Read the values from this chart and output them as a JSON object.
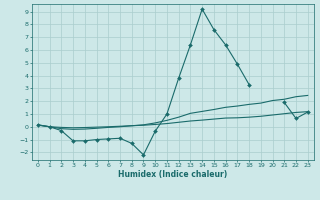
{
  "background_color": "#cde8e8",
  "grid_color": "#aacece",
  "line_color": "#1a6b6b",
  "xlabel": "Humidex (Indice chaleur)",
  "xlim": [
    -0.5,
    23.5
  ],
  "ylim": [
    -2.6,
    9.6
  ],
  "xticks": [
    0,
    1,
    2,
    3,
    4,
    5,
    6,
    7,
    8,
    9,
    10,
    11,
    12,
    13,
    14,
    15,
    16,
    17,
    18,
    19,
    20,
    21,
    22,
    23
  ],
  "yticks": [
    -2,
    -1,
    0,
    1,
    2,
    3,
    4,
    5,
    6,
    7,
    8,
    9
  ],
  "s1x": [
    0,
    1,
    2,
    3,
    4,
    5,
    6,
    7,
    8,
    9,
    10,
    11,
    12,
    13,
    14,
    15,
    16,
    17,
    18
  ],
  "s1y": [
    0.15,
    0.0,
    -0.3,
    -1.1,
    -1.1,
    -1.0,
    -0.95,
    -0.9,
    -1.3,
    -2.2,
    -0.35,
    1.0,
    3.8,
    6.4,
    9.2,
    7.6,
    6.4,
    4.9,
    3.3
  ],
  "s2x": [
    0,
    1,
    2,
    3,
    4,
    5,
    6,
    7,
    8,
    9,
    10,
    11,
    12,
    13,
    14,
    15,
    16,
    17,
    18,
    19,
    20,
    21,
    22,
    23
  ],
  "s2y": [
    0.15,
    0.0,
    -0.15,
    -0.2,
    -0.18,
    -0.12,
    -0.05,
    0.0,
    0.08,
    0.15,
    0.3,
    0.5,
    0.75,
    1.05,
    1.2,
    1.35,
    1.52,
    1.62,
    1.75,
    1.85,
    2.05,
    2.15,
    2.35,
    2.45
  ],
  "s3x": [
    0,
    1,
    2,
    3,
    4,
    5,
    6,
    7,
    8,
    9,
    10,
    11,
    12,
    13,
    14,
    15,
    16,
    17,
    18,
    19,
    20,
    21,
    22,
    23
  ],
  "s3y": [
    0.12,
    0.0,
    -0.05,
    -0.08,
    -0.06,
    -0.03,
    0.0,
    0.04,
    0.08,
    0.12,
    0.18,
    0.25,
    0.35,
    0.45,
    0.52,
    0.6,
    0.68,
    0.7,
    0.75,
    0.82,
    0.92,
    1.02,
    1.12,
    1.18
  ],
  "s4x": [
    21,
    22,
    23
  ],
  "s4y": [
    1.9,
    0.65,
    1.15
  ]
}
